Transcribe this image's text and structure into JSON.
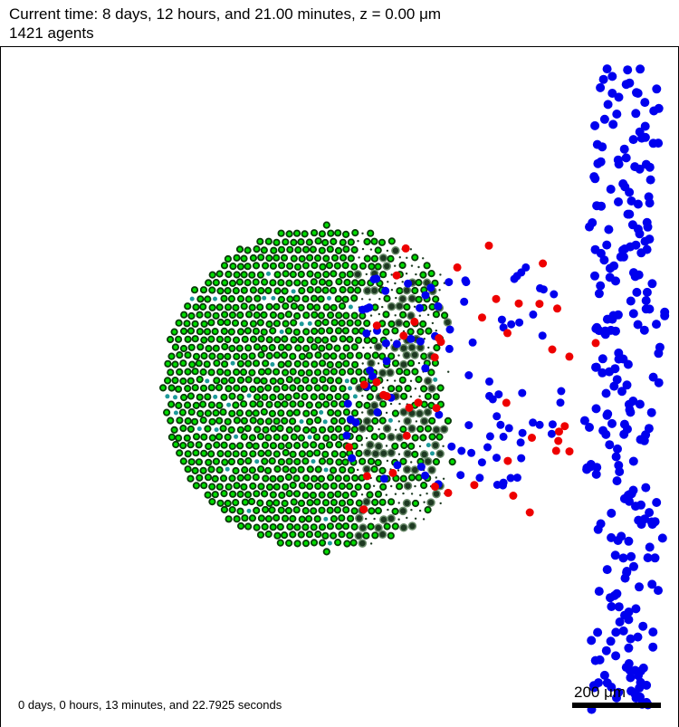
{
  "header": {
    "time_text": "Current time: 8 days, 12 hours, and 21.00 minutes, z = 0.00 μm",
    "agent_count_text": "1421 agents"
  },
  "footer": {
    "runtime_text": "0 days, 0 hours, 13 minutes, and 22.7925 seconds",
    "scale_label": "200 μm"
  },
  "colors": {
    "background": "#ffffff",
    "frame": "#000000",
    "tumor_cell": "#00dd00",
    "tumor_cell_outline": "#0a3a0a",
    "dying_cell": "#1e3a22",
    "immune_cell": "#0000ee",
    "activated_immune_cell": "#ee0000",
    "debris": "#1e9a9a",
    "scale_bar": "#000000"
  }
}
